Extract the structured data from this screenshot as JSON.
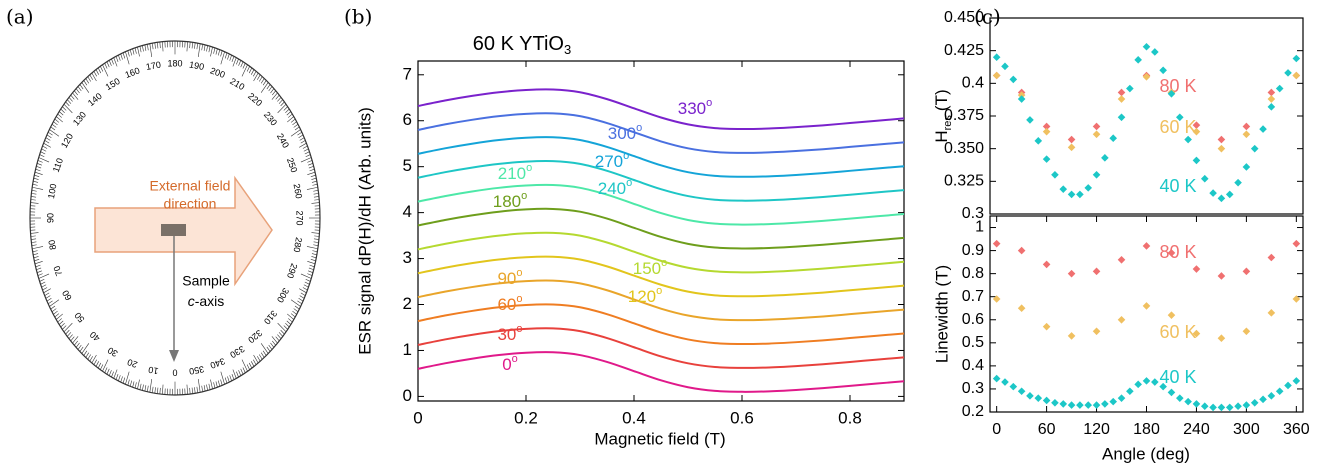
{
  "panel_labels": [
    "(a)",
    "(b)",
    "(c)"
  ],
  "panel_a": {
    "field_line1": "External field",
    "field_line2": "direction",
    "sample_label": "Sample",
    "axis_italic": "c",
    "axis_rest": "-axis",
    "dial_labels": [
      0,
      10,
      20,
      30,
      40,
      50,
      60,
      70,
      80,
      90,
      100,
      110,
      120,
      130,
      140,
      150,
      160,
      170,
      180,
      190,
      200,
      210,
      220,
      230,
      240,
      250,
      260,
      270,
      280,
      290,
      300,
      310,
      320,
      330,
      340,
      350
    ]
  },
  "chart_data": [
    {
      "type": "line",
      "title": "60 K  YTiO",
      "title_subscript": "3",
      "xlabel": "Magnetic field (T)",
      "ylabel": "ESR signal dP(H)/dH (Arb. units)",
      "degree_mark": "o",
      "x": [
        0,
        0.05,
        0.1,
        0.15,
        0.2,
        0.25,
        0.3,
        0.35,
        0.4,
        0.45,
        0.5,
        0.55,
        0.6,
        0.65,
        0.7,
        0.75,
        0.8,
        0.85,
        0.9
      ],
      "xlim": [
        0,
        0.9
      ],
      "ylim": [
        -0.1,
        7.3
      ],
      "xticks": [
        0,
        0.2,
        0.4,
        0.6,
        0.8
      ],
      "yticks": [
        0,
        1,
        2,
        3,
        4,
        5,
        6,
        7
      ],
      "series": [
        {
          "name": "0",
          "color": "#e0198a",
          "values": [
            0.6,
            0.72,
            0.82,
            0.9,
            0.95,
            0.96,
            0.9,
            0.75,
            0.55,
            0.35,
            0.2,
            0.12,
            0.1,
            0.11,
            0.14,
            0.18,
            0.23,
            0.28,
            0.33
          ]
        },
        {
          "name": "30",
          "color": "#e8413c",
          "values": [
            1.12,
            1.24,
            1.34,
            1.42,
            1.47,
            1.48,
            1.42,
            1.27,
            1.07,
            0.87,
            0.72,
            0.64,
            0.62,
            0.63,
            0.66,
            0.7,
            0.75,
            0.8,
            0.85
          ]
        },
        {
          "name": "60",
          "color": "#ef7d22",
          "values": [
            1.64,
            1.76,
            1.86,
            1.94,
            1.99,
            2,
            1.94,
            1.79,
            1.59,
            1.39,
            1.24,
            1.16,
            1.14,
            1.15,
            1.18,
            1.22,
            1.27,
            1.32,
            1.37
          ]
        },
        {
          "name": "90",
          "color": "#e9a52a",
          "values": [
            2.16,
            2.28,
            2.38,
            2.46,
            2.51,
            2.52,
            2.46,
            2.31,
            2.11,
            1.91,
            1.76,
            1.68,
            1.66,
            1.67,
            1.7,
            1.74,
            1.79,
            1.84,
            1.89
          ]
        },
        {
          "name": "120",
          "color": "#e2c51c",
          "values": [
            2.68,
            2.8,
            2.9,
            2.98,
            3.03,
            3.04,
            2.98,
            2.83,
            2.63,
            2.43,
            2.28,
            2.2,
            2.18,
            2.19,
            2.22,
            2.26,
            2.31,
            2.36,
            2.41
          ]
        },
        {
          "name": "150",
          "color": "#b5d930",
          "values": [
            3.2,
            3.32,
            3.42,
            3.5,
            3.55,
            3.56,
            3.5,
            3.35,
            3.15,
            2.95,
            2.8,
            2.72,
            2.7,
            2.71,
            2.74,
            2.78,
            2.83,
            2.88,
            2.93
          ]
        },
        {
          "name": "180",
          "color": "#6e9e1c",
          "values": [
            3.72,
            3.84,
            3.94,
            4.02,
            4.07,
            4.08,
            4.02,
            3.87,
            3.67,
            3.47,
            3.32,
            3.24,
            3.22,
            3.23,
            3.26,
            3.3,
            3.35,
            3.4,
            3.45
          ]
        },
        {
          "name": "210",
          "color": "#4de8a8",
          "values": [
            4.24,
            4.36,
            4.46,
            4.54,
            4.59,
            4.6,
            4.54,
            4.39,
            4.19,
            3.99,
            3.84,
            3.76,
            3.74,
            3.75,
            3.78,
            3.82,
            3.87,
            3.92,
            3.97
          ]
        },
        {
          "name": "240",
          "color": "#1ec6c6",
          "values": [
            4.76,
            4.88,
            4.98,
            5.06,
            5.11,
            5.12,
            5.06,
            4.91,
            4.71,
            4.51,
            4.36,
            4.28,
            4.26,
            4.27,
            4.3,
            4.34,
            4.39,
            4.44,
            4.49
          ]
        },
        {
          "name": "270",
          "color": "#14a4d8",
          "values": [
            5.28,
            5.4,
            5.5,
            5.58,
            5.63,
            5.64,
            5.58,
            5.43,
            5.23,
            5.03,
            4.88,
            4.8,
            4.78,
            4.79,
            4.82,
            4.86,
            4.91,
            4.96,
            5.01
          ]
        },
        {
          "name": "300",
          "color": "#4a70e0",
          "values": [
            5.8,
            5.92,
            6.02,
            6.1,
            6.15,
            6.16,
            6.1,
            5.95,
            5.75,
            5.55,
            5.4,
            5.32,
            5.3,
            5.31,
            5.34,
            5.38,
            5.43,
            5.48,
            5.53
          ]
        },
        {
          "name": "330",
          "color": "#7a22cc",
          "values": [
            6.32,
            6.44,
            6.54,
            6.62,
            6.67,
            6.68,
            6.62,
            6.47,
            6.27,
            6.07,
            5.92,
            5.84,
            5.82,
            5.83,
            5.86,
            5.9,
            5.95,
            6,
            6.05
          ]
        }
      ]
    },
    {
      "type": "scatter",
      "ylabel": "H",
      "ylabel_subscript": "res",
      "ylabel_suffix": "(T)",
      "xlim": [
        -8,
        368
      ],
      "ylim": [
        0.3,
        0.45
      ],
      "yticks": [
        0.3,
        0.325,
        {
          "value": 0.35,
          "label": "0.350"
        },
        0.375,
        0.4,
        0.425,
        {
          "value": 0.45,
          "label": "0.450"
        }
      ],
      "series": [
        {
          "name": "80 K",
          "color": "#f07070",
          "x": [
            0,
            30,
            60,
            90,
            120,
            150,
            180,
            210,
            240,
            270,
            300,
            330,
            360
          ],
          "values": [
            0.406,
            0.393,
            0.367,
            0.357,
            0.367,
            0.393,
            0.406,
            0.393,
            0.368,
            0.357,
            0.367,
            0.393,
            0.406
          ]
        },
        {
          "name": "60 K",
          "color": "#f0c060",
          "x": [
            0,
            30,
            60,
            90,
            120,
            150,
            180,
            210,
            240,
            270,
            300,
            330,
            360
          ],
          "values": [
            0.406,
            0.391,
            0.363,
            0.351,
            0.361,
            0.388,
            0.405,
            0.393,
            0.363,
            0.35,
            0.361,
            0.388,
            0.406
          ]
        },
        {
          "name": "40 K",
          "color": "#1cc7c7",
          "x": [
            0,
            10,
            20,
            30,
            40,
            50,
            60,
            70,
            80,
            90,
            100,
            110,
            120,
            130,
            140,
            150,
            160,
            170,
            180,
            190,
            200,
            210,
            220,
            230,
            240,
            250,
            260,
            270,
            280,
            290,
            300,
            310,
            320,
            330,
            340,
            350,
            360
          ],
          "values": [
            0.42,
            0.413,
            0.403,
            0.388,
            0.372,
            0.356,
            0.342,
            0.33,
            0.319,
            0.315,
            0.315,
            0.32,
            0.33,
            0.343,
            0.358,
            0.374,
            0.396,
            0.418,
            0.428,
            0.424,
            0.41,
            0.392,
            0.374,
            0.357,
            0.341,
            0.327,
            0.316,
            0.312,
            0.315,
            0.324,
            0.336,
            0.35,
            0.365,
            0.382,
            0.396,
            0.408,
            0.419
          ]
        }
      ]
    },
    {
      "type": "scatter",
      "xlabel": "Angle (deg)",
      "ylabel": "Linewidth (T)",
      "xlim": [
        -8,
        368
      ],
      "ylim": [
        0.2,
        1.05
      ],
      "xticks": [
        0,
        60,
        120,
        180,
        240,
        300,
        360
      ],
      "yticks": [
        0.2,
        0.3,
        0.4,
        0.5,
        0.6,
        0.7,
        0.8,
        0.9,
        1
      ],
      "series": [
        {
          "name": "80 K",
          "color": "#f07070",
          "x": [
            0,
            30,
            60,
            90,
            120,
            150,
            180,
            210,
            240,
            270,
            300,
            330,
            360
          ],
          "values": [
            0.93,
            0.9,
            0.84,
            0.8,
            0.81,
            0.86,
            0.92,
            0.89,
            0.82,
            0.79,
            0.81,
            0.87,
            0.93
          ]
        },
        {
          "name": "60 K",
          "color": "#f0c060",
          "x": [
            0,
            30,
            60,
            90,
            120,
            150,
            180,
            210,
            240,
            270,
            300,
            330,
            360
          ],
          "values": [
            0.69,
            0.65,
            0.57,
            0.53,
            0.55,
            0.6,
            0.66,
            0.62,
            0.54,
            0.52,
            0.55,
            0.63,
            0.69
          ]
        },
        {
          "name": "40 K",
          "color": "#1cc7c7",
          "x": [
            0,
            10,
            20,
            30,
            40,
            50,
            60,
            70,
            80,
            90,
            100,
            110,
            120,
            130,
            140,
            150,
            160,
            170,
            180,
            190,
            200,
            210,
            220,
            230,
            240,
            250,
            260,
            270,
            280,
            290,
            300,
            310,
            320,
            330,
            340,
            350,
            360
          ],
          "values": [
            0.345,
            0.33,
            0.31,
            0.29,
            0.27,
            0.26,
            0.25,
            0.24,
            0.235,
            0.23,
            0.23,
            0.23,
            0.23,
            0.235,
            0.245,
            0.26,
            0.29,
            0.32,
            0.335,
            0.33,
            0.31,
            0.285,
            0.26,
            0.245,
            0.235,
            0.225,
            0.22,
            0.22,
            0.22,
            0.225,
            0.23,
            0.24,
            0.255,
            0.27,
            0.29,
            0.315,
            0.335
          ]
        }
      ]
    }
  ]
}
